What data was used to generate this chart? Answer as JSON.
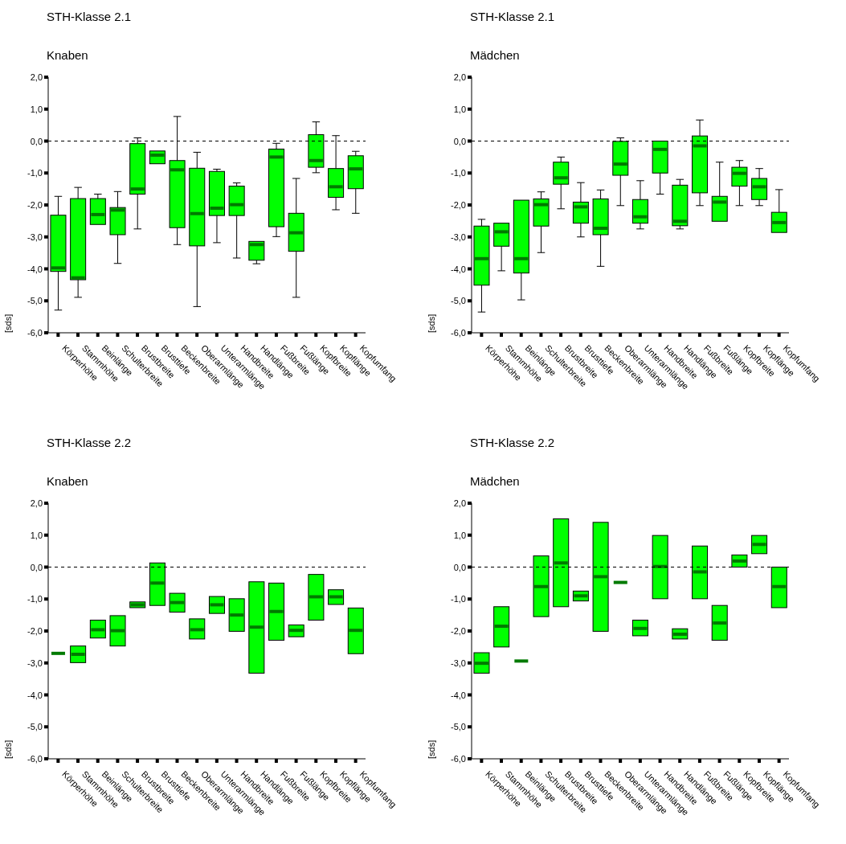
{
  "chart_data": [
    {
      "type": "box",
      "title": "STH-Klasse 2.1",
      "subtitle": "Knaben",
      "ylabel": "[sds]",
      "color": "#00ff00",
      "categories": [
        "Körperhöhe",
        "Stammhöhe",
        "Beinlänge",
        "Schulterbreite",
        "Brustbreite",
        "Brusttiefe",
        "Beckenbreite",
        "Oberarmlänge",
        "Unterarmlänge",
        "Handbreite",
        "Handlänge",
        "Fußbreite",
        "Fußlänge",
        "Kopfbreite",
        "Kopflänge",
        "Kopfumfang"
      ],
      "boxes": [
        {
          "low": -5.29,
          "q1": -4.08,
          "median": -3.97,
          "q3": -2.32,
          "high": -1.73
        },
        {
          "low": -4.89,
          "q1": -4.34,
          "median": -4.28,
          "q3": -1.8,
          "high": -1.45
        },
        {
          "low": -2.61,
          "q1": -2.61,
          "median": -2.3,
          "q3": -1.8,
          "high": -1.66
        },
        {
          "low": -3.83,
          "q1": -2.93,
          "median": -2.16,
          "q3": -2.08,
          "high": -1.58
        },
        {
          "low": -2.75,
          "q1": -1.66,
          "median": -1.5,
          "q3": -0.08,
          "high": 0.1
        },
        {
          "low": -0.71,
          "q1": -0.71,
          "median": -0.44,
          "q3": -0.31,
          "high": -0.31
        },
        {
          "low": -3.24,
          "q1": -2.71,
          "median": -0.9,
          "q3": -0.61,
          "high": 0.77
        },
        {
          "low": -5.18,
          "q1": -3.28,
          "median": -2.27,
          "q3": -0.85,
          "high": -0.35
        },
        {
          "low": -3.18,
          "q1": -2.33,
          "median": -2.1,
          "q3": -0.95,
          "high": -0.88
        },
        {
          "low": -3.66,
          "q1": -2.33,
          "median": -1.99,
          "q3": -1.41,
          "high": -1.31
        },
        {
          "low": -3.84,
          "q1": -3.73,
          "median": -3.24,
          "q3": -3.14,
          "high": -3.14
        },
        {
          "low": -2.99,
          "q1": -2.68,
          "median": -0.5,
          "q3": -0.25,
          "high": -0.07
        },
        {
          "low": -4.89,
          "q1": -3.45,
          "median": -2.87,
          "q3": -2.26,
          "high": -1.17
        },
        {
          "low": -0.99,
          "q1": -0.82,
          "median": -0.61,
          "q3": 0.2,
          "high": 0.6
        },
        {
          "low": -2.15,
          "q1": -1.76,
          "median": -1.43,
          "q3": -0.86,
          "high": 0.17
        },
        {
          "low": -2.26,
          "q1": -1.49,
          "median": -0.87,
          "q3": -0.46,
          "high": -0.32
        }
      ],
      "ylim": [
        -6,
        2
      ],
      "yticks": [
        {
          "value": -6,
          "label": "-6,0"
        },
        {
          "value": -5,
          "label": "-5,0"
        },
        {
          "value": -4,
          "label": "-4,0"
        },
        {
          "value": -3,
          "label": "-3,0"
        },
        {
          "value": -2,
          "label": "-2,0"
        },
        {
          "value": -1,
          "label": "-1,0"
        },
        {
          "value": 0,
          "label": "0,0"
        },
        {
          "value": 1,
          "label": "1,0"
        },
        {
          "value": 2,
          "label": "2,0"
        }
      ],
      "ref_lines": [
        {
          "axis": "y",
          "value": 0,
          "line_style": "dashed",
          "color": "#000000"
        }
      ]
    },
    {
      "type": "box",
      "title": "STH-Klasse 2.1",
      "subtitle": "Mädchen",
      "ylabel": "[sds]",
      "color": "#00ff00",
      "categories": [
        "Körperhöhe",
        "Stammhöhe",
        "Beinlänge",
        "Schulterbreite",
        "Brustbreite",
        "Brusttiefe",
        "Beckenbreite",
        "Oberarmlänge",
        "Unterarmlänge",
        "Handbreite",
        "Handlänge",
        "Fußbreite",
        "Fußlänge",
        "Kopfbreite",
        "Kopflänge",
        "Kopfumfang"
      ],
      "boxes": [
        {
          "low": -5.35,
          "q1": -4.51,
          "median": -3.68,
          "q3": -2.66,
          "high": -2.45
        },
        {
          "low": -4.06,
          "q1": -3.29,
          "median": -2.84,
          "q3": -2.57,
          "high": -2.57
        },
        {
          "low": -4.97,
          "q1": -4.13,
          "median": -3.68,
          "q3": -1.85,
          "high": -1.85
        },
        {
          "low": -3.49,
          "q1": -2.66,
          "median": -1.99,
          "q3": -1.81,
          "high": -1.59
        },
        {
          "low": -2.12,
          "q1": -1.35,
          "median": -1.15,
          "q3": -0.66,
          "high": -0.5
        },
        {
          "low": -3.0,
          "q1": -2.57,
          "median": -2.06,
          "q3": -1.91,
          "high": -1.3
        },
        {
          "low": -3.92,
          "q1": -2.93,
          "median": -2.73,
          "q3": -1.81,
          "high": -1.53
        },
        {
          "low": -2.02,
          "q1": -1.07,
          "median": -0.72,
          "q3": -0.01,
          "high": 0.1
        },
        {
          "low": -2.75,
          "q1": -2.57,
          "median": -2.37,
          "q3": -1.83,
          "high": -1.24
        },
        {
          "low": -1.66,
          "q1": -1.0,
          "median": -0.26,
          "q3": 0.0,
          "high": 0.0
        },
        {
          "low": -2.75,
          "q1": -2.65,
          "median": -2.51,
          "q3": -1.38,
          "high": -1.2
        },
        {
          "low": -2.02,
          "q1": -1.62,
          "median": -0.15,
          "q3": 0.16,
          "high": 0.66
        },
        {
          "low": -2.51,
          "q1": -2.51,
          "median": -1.91,
          "q3": -1.73,
          "high": -0.66
        },
        {
          "low": -2.02,
          "q1": -1.41,
          "median": -1.01,
          "q3": -0.82,
          "high": -0.61
        },
        {
          "low": -2.02,
          "q1": -1.83,
          "median": -1.43,
          "q3": -1.17,
          "high": -0.86
        },
        {
          "low": -2.86,
          "q1": -2.86,
          "median": -2.55,
          "q3": -2.23,
          "high": -1.52
        }
      ],
      "ylim": [
        -6,
        2
      ],
      "yticks": [
        {
          "value": -6,
          "label": "-6,0"
        },
        {
          "value": -5,
          "label": "-5,0"
        },
        {
          "value": -4,
          "label": "-4,0"
        },
        {
          "value": -3,
          "label": "-3,0"
        },
        {
          "value": -2,
          "label": "-2,0"
        },
        {
          "value": -1,
          "label": "-1,0"
        },
        {
          "value": 0,
          "label": "0,0"
        },
        {
          "value": 1,
          "label": "1,0"
        },
        {
          "value": 2,
          "label": "2,0"
        }
      ],
      "ref_lines": [
        {
          "axis": "y",
          "value": 0,
          "line_style": "dashed",
          "color": "#000000"
        }
      ]
    },
    {
      "type": "box",
      "title": "STH-Klasse 2.2",
      "subtitle": "Knaben",
      "ylabel": "[sds]",
      "colors": [
        "#007a00",
        "#00ff00",
        "#00ff00",
        "#00ff00",
        "#00ff00",
        "#00ff00",
        "#00ff00",
        "#00ff00",
        "#00ff00",
        "#00ff00",
        "#00ff00",
        "#00ff00",
        "#00ff00",
        "#00ff00",
        "#00ff00",
        "#00ff00"
      ],
      "categories": [
        "Körperhöhe",
        "Stammhöhe",
        "Beinlänge",
        "Schulterbreite",
        "Brustbreite",
        "Brusttiefe",
        "Beckenbreite",
        "Oberarmlänge",
        "Unterarmlänge",
        "Handbreite",
        "Handlänge",
        "Fußbreite",
        "Fußlänge",
        "Kopfbreite",
        "Kopflänge",
        "Kopfumfang"
      ],
      "boxes": [
        {
          "low": -2.7,
          "q1": -2.7,
          "median": -2.7,
          "q3": -2.7,
          "high": -2.7
        },
        {
          "low": -2.99,
          "q1": -2.99,
          "median": -2.73,
          "q3": -2.47,
          "high": -2.47
        },
        {
          "low": -2.22,
          "q1": -2.22,
          "median": -1.96,
          "q3": -1.66,
          "high": -1.66
        },
        {
          "low": -2.47,
          "q1": -2.47,
          "median": -1.99,
          "q3": -1.52,
          "high": -1.52
        },
        {
          "low": -1.27,
          "q1": -1.27,
          "median": -1.18,
          "q3": -1.09,
          "high": -1.09
        },
        {
          "low": -1.2,
          "q1": -1.2,
          "median": -0.5,
          "q3": 0.13,
          "high": 0.13
        },
        {
          "low": -1.41,
          "q1": -1.41,
          "median": -1.11,
          "q3": -0.82,
          "high": -0.82
        },
        {
          "low": -2.25,
          "q1": -2.25,
          "median": -1.96,
          "q3": -1.62,
          "high": -1.62
        },
        {
          "low": -1.45,
          "q1": -1.45,
          "median": -1.18,
          "q3": -0.92,
          "high": -0.92
        },
        {
          "low": -2.01,
          "q1": -2.01,
          "median": -1.5,
          "q3": -0.99,
          "high": -0.99
        },
        {
          "low": -3.32,
          "q1": -3.32,
          "median": -1.88,
          "q3": -0.46,
          "high": -0.46
        },
        {
          "low": -2.29,
          "q1": -2.29,
          "median": -1.39,
          "q3": -0.5,
          "high": -0.5
        },
        {
          "low": -2.18,
          "q1": -2.18,
          "median": -1.98,
          "q3": -1.81,
          "high": -1.81
        },
        {
          "low": -1.66,
          "q1": -1.66,
          "median": -0.93,
          "q3": -0.23,
          "high": -0.23
        },
        {
          "low": -1.17,
          "q1": -1.17,
          "median": -0.93,
          "q3": -0.71,
          "high": -0.71
        },
        {
          "low": -2.71,
          "q1": -2.71,
          "median": -1.98,
          "q3": -1.28,
          "high": -1.28
        }
      ],
      "ylim": [
        -6,
        2
      ],
      "yticks": [
        {
          "value": -6,
          "label": "-6,0"
        },
        {
          "value": -5,
          "label": "-5,0"
        },
        {
          "value": -4,
          "label": "-4,0"
        },
        {
          "value": -3,
          "label": "-3,0"
        },
        {
          "value": -2,
          "label": "-2,0"
        },
        {
          "value": -1,
          "label": "-1,0"
        },
        {
          "value": 0,
          "label": "0,0"
        },
        {
          "value": 1,
          "label": "1,0"
        },
        {
          "value": 2,
          "label": "2,0"
        }
      ],
      "ref_lines": [
        {
          "axis": "y",
          "value": 0,
          "line_style": "dashed",
          "color": "#000000"
        }
      ]
    },
    {
      "type": "box",
      "title": "STH-Klasse 2.2",
      "subtitle": "Mädchen",
      "ylabel": "[sds]",
      "colors": [
        "#00ff00",
        "#00ff00",
        "#007a00",
        "#00ff00",
        "#00ff00",
        "#00ff00",
        "#00ff00",
        "#007a00",
        "#00ff00",
        "#00ff00",
        "#00ff00",
        "#00ff00",
        "#00ff00",
        "#00ff00",
        "#00ff00",
        "#00ff00"
      ],
      "categories": [
        "Körperhöhe",
        "Stammhöhe",
        "Beinlänge",
        "Schulterbreite",
        "Brustbreite",
        "Brusttiefe",
        "Beckenbreite",
        "Oberarmlänge",
        "Unterarmlänge",
        "Handbreite",
        "Handlänge",
        "Fußbreite",
        "Fußlänge",
        "Kopfbreite",
        "Kopflänge",
        "Kopfumfang"
      ],
      "boxes": [
        {
          "low": -3.32,
          "q1": -3.32,
          "median": -3.01,
          "q3": -2.68,
          "high": -2.68
        },
        {
          "low": -2.5,
          "q1": -2.5,
          "median": -1.85,
          "q3": -1.24,
          "high": -1.24
        },
        {
          "low": -2.94,
          "q1": -2.94,
          "median": -2.94,
          "q3": -2.94,
          "high": -2.94
        },
        {
          "low": -1.55,
          "q1": -1.55,
          "median": -0.61,
          "q3": 0.35,
          "high": 0.35
        },
        {
          "low": -1.24,
          "q1": -1.24,
          "median": 0.13,
          "q3": 1.51,
          "high": 1.51
        },
        {
          "low": -1.06,
          "q1": -1.06,
          "median": -0.9,
          "q3": -0.75,
          "high": -0.75
        },
        {
          "low": -2.01,
          "q1": -2.01,
          "median": -0.3,
          "q3": 1.4,
          "high": 1.4
        },
        {
          "low": -0.48,
          "q1": -0.48,
          "median": -0.48,
          "q3": -0.48,
          "high": -0.48
        },
        {
          "low": -2.15,
          "q1": -2.15,
          "median": -1.92,
          "q3": -1.66,
          "high": -1.66
        },
        {
          "low": -0.99,
          "q1": -0.99,
          "median": 0.02,
          "q3": 0.99,
          "high": 0.99
        },
        {
          "low": -2.25,
          "q1": -2.25,
          "median": -2.1,
          "q3": -1.93,
          "high": -1.93
        },
        {
          "low": -0.99,
          "q1": -0.99,
          "median": -0.15,
          "q3": 0.66,
          "high": 0.66
        },
        {
          "low": -2.29,
          "q1": -2.29,
          "median": -1.75,
          "q3": -1.2,
          "high": -1.2
        },
        {
          "low": 0.0,
          "q1": 0.0,
          "median": 0.19,
          "q3": 0.38,
          "high": 0.38
        },
        {
          "low": 0.42,
          "q1": 0.42,
          "median": 0.71,
          "q3": 0.99,
          "high": 0.99
        },
        {
          "low": -1.27,
          "q1": -1.27,
          "median": -0.61,
          "q3": 0.0,
          "high": 0.0
        }
      ],
      "ylim": [
        -6,
        2
      ],
      "yticks": [
        {
          "value": -6,
          "label": "-6,0"
        },
        {
          "value": -5,
          "label": "-5,0"
        },
        {
          "value": -4,
          "label": "-4,0"
        },
        {
          "value": -3,
          "label": "-3,0"
        },
        {
          "value": -2,
          "label": "-2,0"
        },
        {
          "value": -1,
          "label": "-1,0"
        },
        {
          "value": 0,
          "label": "0,0"
        },
        {
          "value": 1,
          "label": "1,0"
        },
        {
          "value": 2,
          "label": "2,0"
        }
      ],
      "ref_lines": [
        {
          "axis": "y",
          "value": 0,
          "line_style": "dashed",
          "color": "#000000"
        }
      ]
    }
  ]
}
